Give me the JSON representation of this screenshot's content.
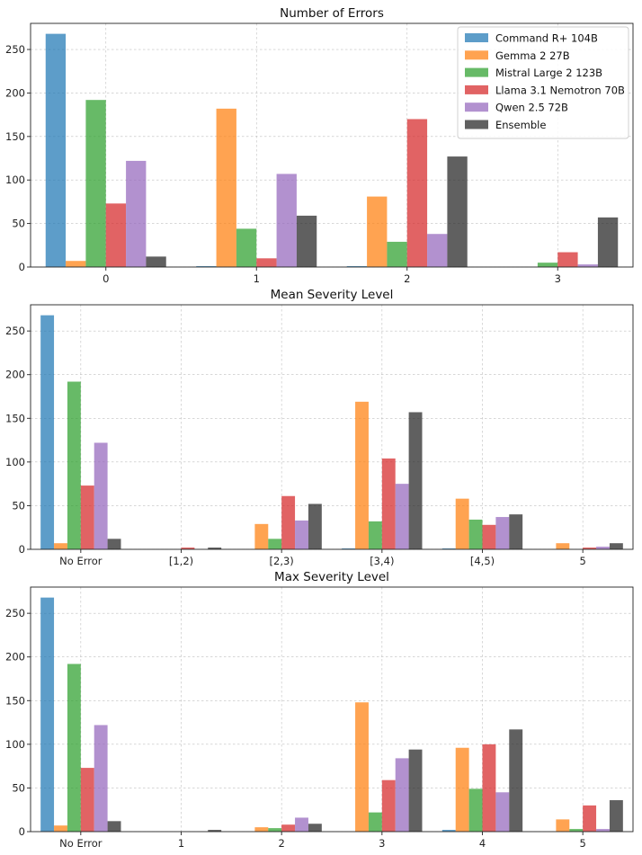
{
  "chart_data": [
    {
      "type": "bar",
      "title": "Number of Errors",
      "xlabel": "",
      "ylabel": "",
      "categories": [
        "0",
        "1",
        "2",
        "3"
      ],
      "ylim": [
        0,
        280
      ],
      "yticks": [
        0,
        50,
        100,
        150,
        200,
        250
      ],
      "grid": true,
      "legend": "top-right",
      "series": [
        {
          "name": "Command R+ 104B",
          "color": "#1f77b4",
          "values": [
            268,
            1,
            1,
            0
          ]
        },
        {
          "name": "Gemma 2 27B",
          "color": "#ff7f0e",
          "values": [
            7,
            182,
            81,
            0
          ]
        },
        {
          "name": "Mistral Large 2 123B",
          "color": "#2ca02c",
          "values": [
            192,
            44,
            29,
            5
          ]
        },
        {
          "name": "Llama 3.1 Nemotron 70B",
          "color": "#d62728",
          "values": [
            73,
            10,
            170,
            17
          ]
        },
        {
          "name": "Qwen 2.5 72B",
          "color": "#9467bd",
          "values": [
            122,
            107,
            38,
            3
          ]
        },
        {
          "name": "Ensemble",
          "color": "#222222",
          "values": [
            12,
            59,
            127,
            57
          ]
        }
      ]
    },
    {
      "type": "bar",
      "title": "Mean Severity Level",
      "xlabel": "",
      "ylabel": "",
      "categories": [
        "No Error",
        "[1,2)",
        "[2,3)",
        "[3,4)",
        "[4,5)",
        "5"
      ],
      "ylim": [
        0,
        280
      ],
      "yticks": [
        0,
        50,
        100,
        150,
        200,
        250
      ],
      "grid": true,
      "series": [
        {
          "name": "Command R+ 104B",
          "color": "#1f77b4",
          "values": [
            268,
            0,
            0,
            1,
            1,
            0
          ]
        },
        {
          "name": "Gemma 2 27B",
          "color": "#ff7f0e",
          "values": [
            7,
            0,
            29,
            169,
            58,
            7
          ]
        },
        {
          "name": "Mistral Large 2 123B",
          "color": "#2ca02c",
          "values": [
            192,
            0,
            12,
            32,
            34,
            0
          ]
        },
        {
          "name": "Llama 3.1 Nemotron 70B",
          "color": "#d62728",
          "values": [
            73,
            2,
            61,
            104,
            28,
            2
          ]
        },
        {
          "name": "Qwen 2.5 72B",
          "color": "#9467bd",
          "values": [
            122,
            0,
            33,
            75,
            37,
            3
          ]
        },
        {
          "name": "Ensemble",
          "color": "#222222",
          "values": [
            12,
            2,
            52,
            157,
            40,
            7
          ]
        }
      ]
    },
    {
      "type": "bar",
      "title": "Max Severity Level",
      "xlabel": "",
      "ylabel": "",
      "categories": [
        "No Error",
        "1",
        "2",
        "3",
        "4",
        "5"
      ],
      "ylim": [
        0,
        280
      ],
      "yticks": [
        0,
        50,
        100,
        150,
        200,
        250
      ],
      "grid": true,
      "series": [
        {
          "name": "Command R+ 104B",
          "color": "#1f77b4",
          "values": [
            268,
            0,
            0,
            0,
            2,
            0
          ]
        },
        {
          "name": "Gemma 2 27B",
          "color": "#ff7f0e",
          "values": [
            7,
            0,
            5,
            148,
            96,
            14
          ]
        },
        {
          "name": "Mistral Large 2 123B",
          "color": "#2ca02c",
          "values": [
            192,
            0,
            4,
            22,
            49,
            3
          ]
        },
        {
          "name": "Llama 3.1 Nemotron 70B",
          "color": "#d62728",
          "values": [
            73,
            0,
            8,
            59,
            100,
            30
          ]
        },
        {
          "name": "Qwen 2.5 72B",
          "color": "#9467bd",
          "values": [
            122,
            0,
            16,
            84,
            45,
            3
          ]
        },
        {
          "name": "Ensemble",
          "color": "#222222",
          "values": [
            12,
            2,
            9,
            94,
            117,
            36
          ]
        }
      ]
    }
  ]
}
